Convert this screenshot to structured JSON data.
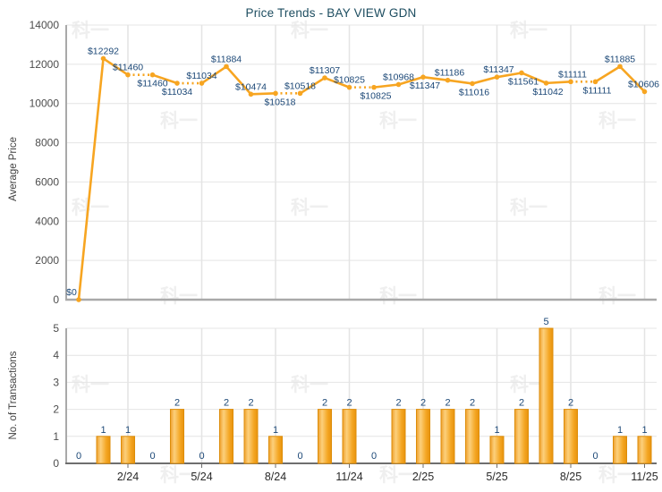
{
  "title": "Price Trends - BAY VIEW GDN",
  "watermark": {
    "text": "科一"
  },
  "axes": {
    "top_ylabel": "Average Price",
    "bottom_ylabel": "No. of Transactions"
  },
  "chart_data": [
    {
      "type": "line",
      "name": "average-price-trend",
      "title": "Price Trends - BAY VIEW GDN",
      "xlabel": "",
      "ylabel": "Average Price",
      "ylim": [
        0,
        14000
      ],
      "yticks": [
        14000,
        12000,
        10000,
        8000,
        6000,
        4000,
        2000,
        0
      ],
      "grid": true,
      "legend": "none",
      "line_color": "#F7A521",
      "label_color": "#1C4877",
      "x": [
        "12/23",
        "1/24",
        "2/24",
        "3/24",
        "4/24",
        "5/24",
        "6/24",
        "7/24",
        "8/24",
        "9/24",
        "10/24",
        "11/24",
        "12/24",
        "1/25",
        "2/25",
        "3/25",
        "4/25",
        "5/25",
        "6/25",
        "7/25",
        "8/25",
        "9/25",
        "10/25",
        "11/25"
      ],
      "x_tick_labels": [
        "2/24",
        "5/24",
        "8/24",
        "11/24",
        "2/25",
        "5/25",
        "8/25",
        "11/25"
      ],
      "values": [
        0,
        12292,
        11460,
        11460,
        11034,
        11034,
        11884,
        10474,
        10518,
        10518,
        11307,
        10825,
        10825,
        10968,
        11347,
        11186,
        11016,
        11347,
        11561,
        11042,
        11111,
        11111,
        11885,
        10606
      ],
      "point_label_prefix": "$",
      "label_side": [
        "above",
        "above",
        "above",
        "below",
        "below",
        "above",
        "above",
        "above",
        "below",
        "above",
        "above",
        "above",
        "below",
        "above",
        "below",
        "above",
        "below",
        "above",
        "below",
        "below",
        "above",
        "below",
        "above",
        "above"
      ],
      "label_dx": [
        -8,
        0,
        0,
        0,
        0,
        0,
        0,
        0,
        5,
        0,
        0,
        0,
        2,
        0,
        2,
        2,
        2,
        2,
        2,
        2,
        2,
        2,
        0,
        -1
      ],
      "dotted_over_zero_transaction_months": true
    },
    {
      "type": "bar",
      "name": "transactions-per-month",
      "xlabel": "",
      "ylabel": "No. of Transactions",
      "ylim": [
        0,
        5
      ],
      "yticks": [
        5,
        4,
        3,
        2,
        1,
        0
      ],
      "grid": true,
      "legend": "none",
      "bar_color": "#F4A623",
      "bar_border_color": "#DD8D0A",
      "label_color": "#1C4877",
      "categories": [
        "12/23",
        "1/24",
        "2/24",
        "3/24",
        "4/24",
        "5/24",
        "6/24",
        "7/24",
        "8/24",
        "9/24",
        "10/24",
        "11/24",
        "12/24",
        "1/25",
        "2/25",
        "3/25",
        "4/25",
        "5/25",
        "6/25",
        "7/25",
        "8/25",
        "9/25",
        "10/25",
        "11/25"
      ],
      "x_tick_labels": [
        "2/24",
        "5/24",
        "8/24",
        "11/24",
        "2/25",
        "5/25",
        "8/25",
        "11/25"
      ],
      "values": [
        0,
        1,
        1,
        0,
        2,
        0,
        2,
        2,
        1,
        0,
        2,
        2,
        0,
        2,
        2,
        2,
        2,
        1,
        2,
        5,
        2,
        0,
        1,
        1
      ]
    }
  ]
}
